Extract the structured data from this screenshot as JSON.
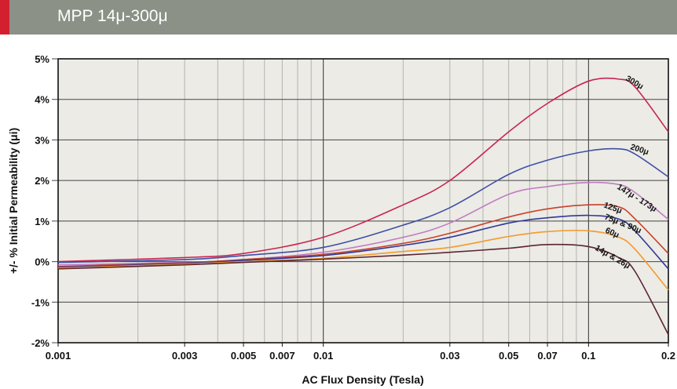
{
  "header": {
    "title": "MPP 14μ-300μ"
  },
  "colors": {
    "header_bg": "#8b9186",
    "accent": "#d3202f",
    "plot_bg": "#ecebe6"
  },
  "chart_data": {
    "type": "line",
    "title": "MPP 14μ-300μ",
    "xlabel": "AC Flux Density (Tesla)",
    "ylabel": "+/- % Initial Permeability (μi)",
    "xscale": "log",
    "xlim": [
      0.001,
      0.2
    ],
    "ylim": [
      -2,
      5
    ],
    "grid": true,
    "x_ticks": [
      0.001,
      0.003,
      0.005,
      0.007,
      0.01,
      0.03,
      0.05,
      0.07,
      0.1,
      0.2
    ],
    "x_tick_labels": [
      "0.001",
      "0.003",
      "0.005",
      "0.007",
      "0.01",
      "0.03",
      "0.05",
      "0.07",
      "0.1",
      "0.2"
    ],
    "y_ticks": [
      5,
      4,
      3,
      2,
      1,
      0,
      -1,
      -2
    ],
    "y_tick_labels": [
      "5%",
      "4%",
      "3%",
      "2%",
      "1%",
      "0%",
      "-1%",
      "-2%"
    ],
    "x": [
      0.001,
      0.003,
      0.005,
      0.01,
      0.02,
      0.03,
      0.05,
      0.07,
      0.1,
      0.13,
      0.15,
      0.2
    ],
    "series": [
      {
        "name": "300μ",
        "color": "#c8254f",
        "values": [
          0.0,
          0.1,
          0.2,
          0.6,
          1.4,
          2.0,
          3.2,
          3.9,
          4.45,
          4.5,
          4.3,
          3.2
        ]
      },
      {
        "name": "200μ",
        "color": "#3f4fa6",
        "values": [
          -0.02,
          0.05,
          0.15,
          0.35,
          0.9,
          1.33,
          2.15,
          2.5,
          2.73,
          2.78,
          2.65,
          2.09
        ]
      },
      {
        "name": "147μ - 173μ",
        "color": "#c07cc0",
        "values": [
          -0.08,
          -0.02,
          0.05,
          0.23,
          0.6,
          0.95,
          1.66,
          1.85,
          1.95,
          1.9,
          1.7,
          1.04
        ]
      },
      {
        "name": "125μ",
        "color": "#c9402a",
        "values": [
          -0.12,
          -0.03,
          0.05,
          0.18,
          0.45,
          0.7,
          1.1,
          1.3,
          1.4,
          1.35,
          1.05,
          0.2
        ]
      },
      {
        "name": "75μ & 90μ",
        "color": "#2f3a98",
        "values": [
          -0.14,
          -0.04,
          0.03,
          0.15,
          0.4,
          0.6,
          0.95,
          1.08,
          1.14,
          1.05,
          0.75,
          -0.18
        ]
      },
      {
        "name": "60μ",
        "color": "#f39a2c",
        "values": [
          -0.16,
          -0.06,
          0.0,
          0.08,
          0.25,
          0.35,
          0.62,
          0.74,
          0.76,
          0.6,
          0.3,
          -0.7
        ]
      },
      {
        "name": "14μ & 26μ",
        "color": "#5a2430",
        "values": [
          -0.18,
          -0.08,
          -0.02,
          0.06,
          0.16,
          0.23,
          0.33,
          0.42,
          0.37,
          0.1,
          -0.25,
          -1.8
        ]
      }
    ],
    "annotations": [
      "300μ",
      "200μ",
      "147μ - 173μ",
      "125μ",
      "75μ & 90μ",
      "60μ",
      "14μ & 26μ"
    ]
  }
}
